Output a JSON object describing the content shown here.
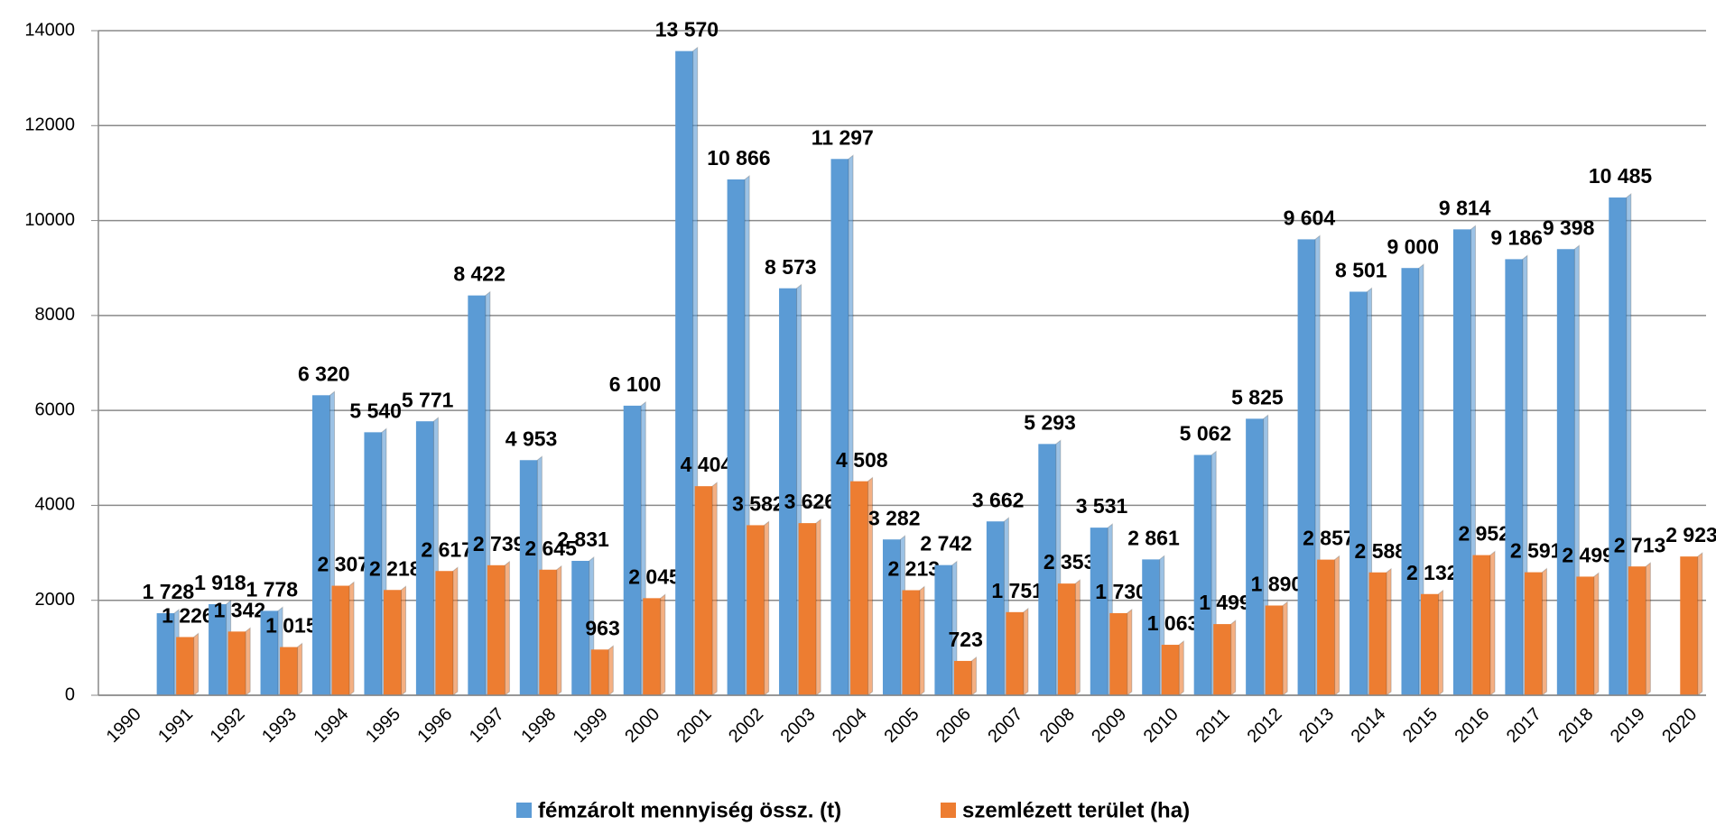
{
  "chart_data": {
    "type": "bar",
    "categories": [
      "1990",
      "1991",
      "1992",
      "1993",
      "1994",
      "1995",
      "1996",
      "1997",
      "1998",
      "1999",
      "2000",
      "2001",
      "2002",
      "2003",
      "2004",
      "2005",
      "2006",
      "2007",
      "2008",
      "2009",
      "2010",
      "2011",
      "2012",
      "2013",
      "2014",
      "2015",
      "2016",
      "2017",
      "2018",
      "2019",
      "2020"
    ],
    "series": [
      {
        "name": "fémzárolt mennyiség össz. (t)",
        "color": "#5b9bd5",
        "values": [
          null,
          1728,
          1918,
          1778,
          6320,
          5540,
          5771,
          8422,
          4953,
          2831,
          6100,
          13570,
          10866,
          8573,
          11297,
          3282,
          2742,
          3662,
          5293,
          3531,
          2861,
          5062,
          5825,
          9604,
          8501,
          9000,
          9814,
          9186,
          9398,
          10485,
          null
        ],
        "value_labels": [
          null,
          "1 728",
          "1 918",
          "1 778",
          "6 320",
          "5 540",
          "5 771",
          "8 422",
          "4 953",
          "2 831",
          "6 100",
          "13 570",
          "10 866",
          "8 573",
          "11 297",
          "3 282",
          "2 742",
          "3 662",
          "5 293",
          "3 531",
          "2 861",
          "5 062",
          "5 825",
          "9 604",
          "8 501",
          "9 000",
          "9 814",
          "9 186",
          "9 398",
          "10 485",
          null
        ]
      },
      {
        "name": "szemlézett terület (ha)",
        "color": "#ed7d31",
        "values": [
          null,
          1226,
          1342,
          1015,
          2307,
          2218,
          2617,
          2739,
          2645,
          963,
          2045,
          4404,
          3582,
          3626,
          4508,
          2213,
          723,
          1751,
          2353,
          1730,
          1063,
          1499,
          1890,
          2857,
          2588,
          2132,
          2952,
          2591,
          2499,
          2713,
          2923
        ],
        "value_labels": [
          null,
          "1 226",
          "1 342",
          "1 015",
          "2 307",
          "2 218",
          "2 617",
          "2 739",
          "2 645",
          "963",
          "2 045",
          "4 404",
          "3 582",
          "3 626",
          "4 508",
          "2 213",
          "723",
          "1 751",
          "2 353",
          "1 730",
          "1 063",
          "1 499",
          "1 890",
          "2 857",
          "2 588",
          "2 132",
          "2 952",
          "2 591",
          "2 499",
          "2 713",
          "2 923"
        ]
      }
    ],
    "ylim": [
      0,
      14000
    ],
    "yticks": [
      0,
      2000,
      4000,
      6000,
      8000,
      10000,
      12000,
      14000
    ],
    "grid": true,
    "legend": "bottom"
  }
}
